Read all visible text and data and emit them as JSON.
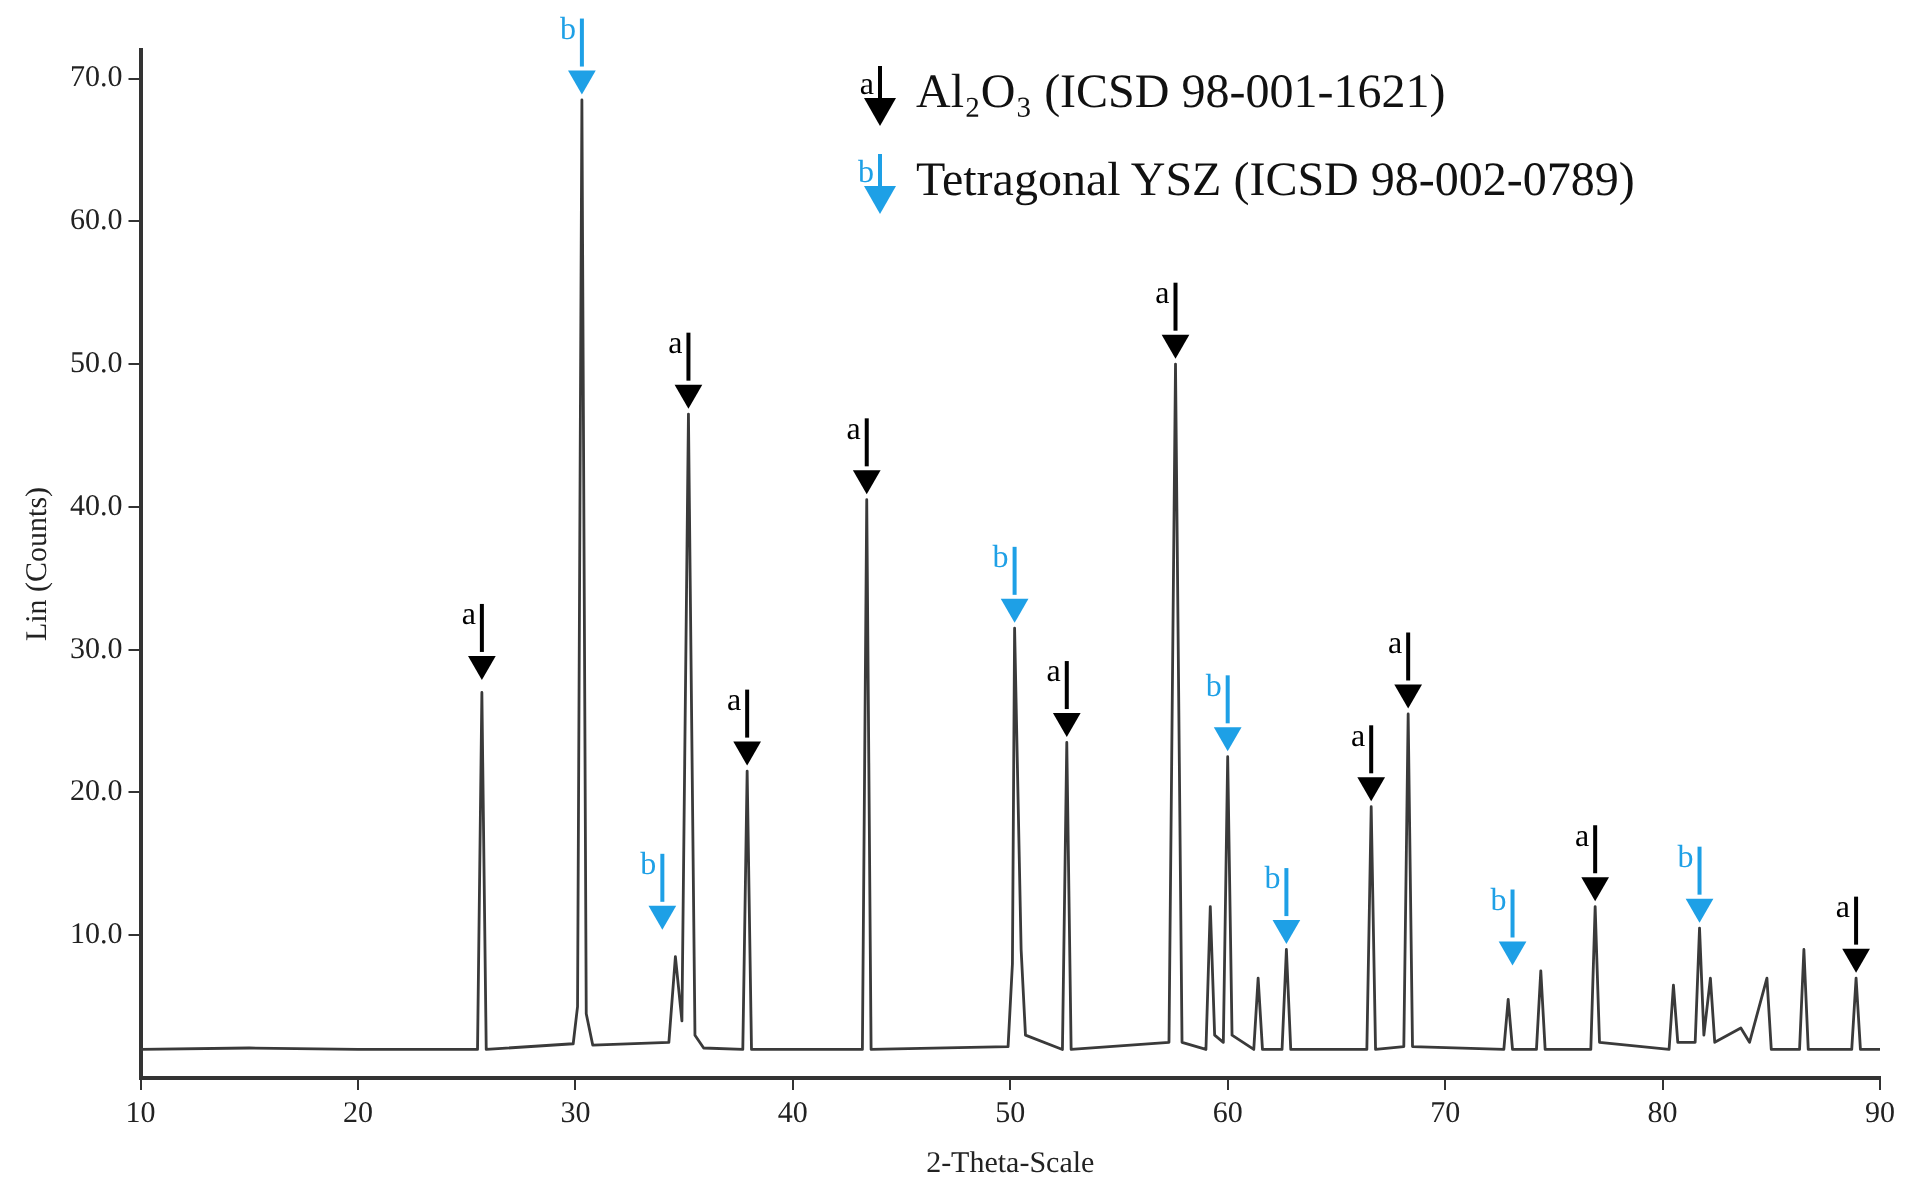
{
  "chart_data": {
    "type": "line",
    "xlabel": "2-Theta-Scale",
    "ylabel": "Lin (Counts)",
    "xlim": [
      10,
      90
    ],
    "xticks": [
      10,
      20,
      30,
      40,
      50,
      60,
      70,
      80,
      90
    ],
    "ylim": [
      0,
      72
    ],
    "yticks": [
      {
        "value": 10,
        "label": "10.0"
      },
      {
        "value": 20,
        "label": "20.0"
      },
      {
        "value": 30,
        "label": "30.0"
      },
      {
        "value": 40,
        "label": "40.0"
      },
      {
        "value": 50,
        "label": "50.0"
      },
      {
        "value": 60,
        "label": "60.0"
      },
      {
        "value": 70,
        "label": "70.0"
      }
    ],
    "grid": false,
    "legend": "top right",
    "line_style": "solid",
    "series": [
      {
        "type": "line",
        "color": "#3a3a3a",
        "marker": "none",
        "x": [
          10,
          15,
          20,
          25.5,
          25.7,
          25.9,
          29.9,
          30.1,
          30.3,
          30.5,
          30.8,
          34.3,
          34.6,
          34.9,
          35.2,
          35.5,
          35.9,
          37.7,
          37.9,
          38.1,
          43.2,
          43.4,
          43.6,
          49.9,
          50.1,
          50.2,
          50.5,
          50.7,
          52.4,
          52.6,
          52.8,
          57.3,
          57.6,
          57.9,
          59.0,
          59.2,
          59.4,
          59.8,
          60.0,
          60.2,
          61.2,
          61.4,
          61.6,
          62.5,
          62.7,
          62.9,
          66.4,
          66.6,
          66.8,
          68.1,
          68.3,
          68.5,
          72.7,
          72.9,
          73.1,
          74.2,
          74.4,
          74.6,
          76.7,
          76.9,
          77.1,
          80.3,
          80.5,
          80.7,
          81.5,
          81.7,
          81.9,
          82.2,
          82.4,
          83.6,
          84.0,
          84.8,
          85.0,
          86.3,
          86.5,
          86.7,
          88.7,
          88.9,
          89.1,
          90
        ],
        "values": [
          2.0,
          2.1,
          2.0,
          2.0,
          27,
          2.0,
          2.4,
          5,
          68.5,
          4.5,
          2.3,
          2.5,
          8.5,
          4,
          46.5,
          3,
          2.1,
          2.0,
          21.5,
          2.0,
          2.0,
          40.5,
          2.0,
          2.2,
          8,
          31.5,
          9,
          3,
          2.0,
          23.5,
          2.0,
          2.5,
          50,
          2.5,
          2.0,
          12,
          3,
          2.5,
          22.5,
          3,
          2.0,
          7,
          2.0,
          2.0,
          9,
          2.0,
          2.0,
          19,
          2.0,
          2.2,
          25.5,
          2.2,
          2.0,
          5.5,
          2.0,
          2.0,
          7.5,
          2.0,
          2.0,
          12,
          2.5,
          2.0,
          6.5,
          2.5,
          2.5,
          10.5,
          3,
          7,
          2.5,
          3.5,
          2.5,
          7,
          2.0,
          2.0,
          9,
          2.0,
          2.0,
          7,
          2.0,
          2.0
        ]
      },
      {
        "type": "scatter",
        "name": "Al₂O₃ (ICSD 98-001-1621)",
        "color": "#000000",
        "marker": "triangle",
        "x": [
          25.7,
          35.2,
          37.9,
          43.4,
          52.6,
          57.6,
          66.6,
          68.3,
          76.9,
          88.9
        ],
        "values": [
          29,
          48,
          23,
          42,
          25,
          51.5,
          20.5,
          27,
          13.5,
          8.5
        ]
      },
      {
        "type": "scatter",
        "name": "Tetragonal YSZ (ICSD 98-002-0789)",
        "color": "#1ea0e6",
        "marker": "triangle",
        "x": [
          30.3,
          34.0,
          50.2,
          60.0,
          62.7,
          73.1,
          81.7
        ],
        "values": [
          70,
          11.5,
          33,
          24,
          10.5,
          9,
          12
        ]
      }
    ],
    "annotations": [
      "a",
      "b",
      {
        "text": "a",
        "x": 25.7,
        "y": 29
      },
      {
        "text": "a",
        "x": 35.2,
        "y": 48
      },
      {
        "text": "a",
        "x": 37.9,
        "y": 23
      },
      {
        "text": "a",
        "x": 43.4,
        "y": 42
      },
      {
        "text": "a",
        "x": 52.6,
        "y": 25
      },
      {
        "text": "a",
        "x": 57.6,
        "y": 51.5
      },
      {
        "text": "a",
        "x": 66.6,
        "y": 20.5
      },
      {
        "text": "a",
        "x": 68.3,
        "y": 27
      },
      {
        "text": "a",
        "x": 76.9,
        "y": 13.5
      },
      {
        "text": "a",
        "x": 88.9,
        "y": 8.5
      },
      {
        "text": "b",
        "x": 30.3,
        "y": 70
      },
      {
        "text": "b",
        "x": 34.0,
        "y": 11.5
      },
      {
        "text": "b",
        "x": 50.2,
        "y": 33
      },
      {
        "text": "b",
        "x": 60.0,
        "y": 24
      },
      {
        "text": "b",
        "x": 62.7,
        "y": 10.5
      },
      {
        "text": "b",
        "x": 73.1,
        "y": 9
      },
      {
        "text": "b",
        "x": 81.7,
        "y": 12
      }
    ]
  }
}
